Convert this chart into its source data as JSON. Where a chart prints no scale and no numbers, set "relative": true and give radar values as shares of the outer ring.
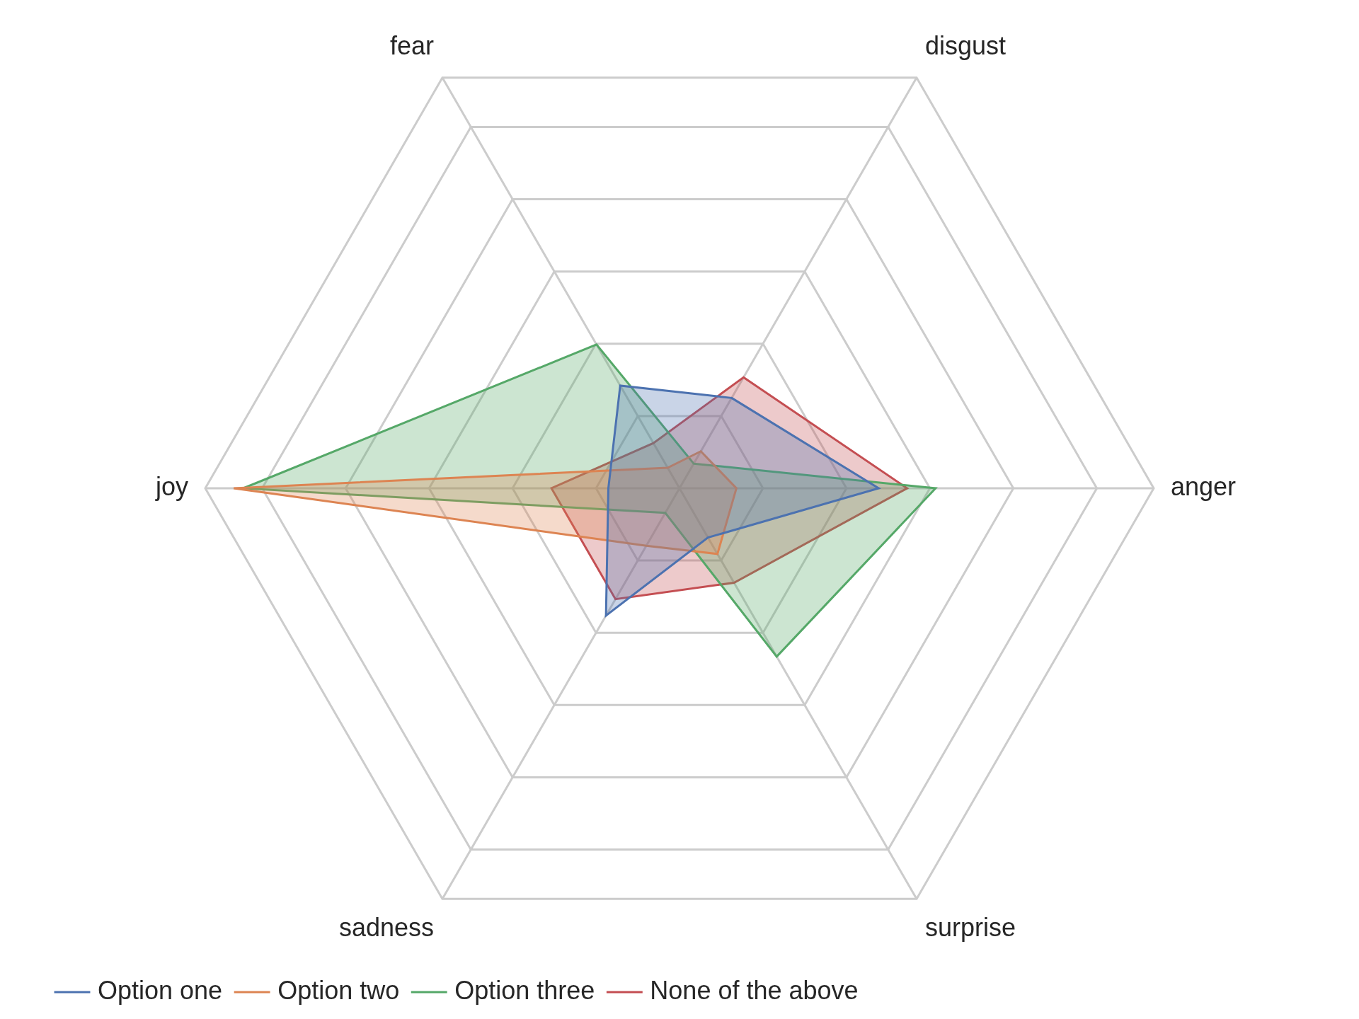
{
  "chart_data": {
    "type": "radar",
    "relative": true,
    "categories": [
      "disgust",
      "anger",
      "surprise",
      "sadness",
      "joy",
      "fear"
    ],
    "series": [
      {
        "name": "Option one",
        "color": "#4c72b0",
        "values": [
          0.22,
          0.42,
          0.12,
          0.31,
          0.15,
          0.25
        ]
      },
      {
        "name": "Option two",
        "color": "#dd8452",
        "values": [
          0.09,
          0.12,
          0.16,
          0.14,
          0.94,
          0.05
        ]
      },
      {
        "name": "Option three",
        "color": "#55a868",
        "values": [
          0.06,
          0.54,
          0.41,
          0.06,
          0.92,
          0.35
        ]
      },
      {
        "name": "None of the above",
        "color": "#c44e52",
        "values": [
          0.27,
          0.48,
          0.23,
          0.27,
          0.27,
          0.11
        ]
      }
    ],
    "grid": true,
    "legend": "bottom left"
  }
}
